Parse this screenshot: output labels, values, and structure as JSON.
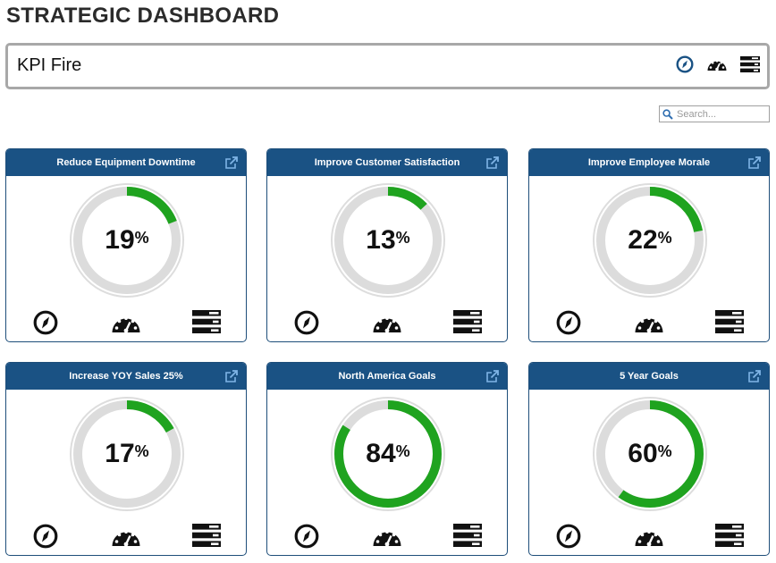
{
  "page": {
    "title": "STRATEGIC DASHBOARD"
  },
  "kpi_bar": {
    "name": "KPI Fire",
    "icons": [
      "compass-icon",
      "speedometer-icon",
      "list-icon"
    ]
  },
  "search": {
    "placeholder": "Search..."
  },
  "colors": {
    "header": "#1a5284",
    "progress": "#1fa31f",
    "track": "#dcdcdc"
  },
  "cards": [
    {
      "title": "Reduce Equipment Downtime",
      "value": 19,
      "unit": "%",
      "progress": 0.19
    },
    {
      "title": "Improve Customer Satisfaction",
      "value": 13,
      "unit": "%",
      "progress": 0.13
    },
    {
      "title": "Improve Employee Morale",
      "value": 22,
      "unit": "%",
      "progress": 0.22
    },
    {
      "title": "Increase YOY Sales 25%",
      "value": 17,
      "unit": "%",
      "progress": 0.17
    },
    {
      "title": "North America Goals",
      "value": 84,
      "unit": "%",
      "progress": 0.84
    },
    {
      "title": "5 Year Goals",
      "value": 60,
      "unit": "%",
      "progress": 0.6
    }
  ]
}
